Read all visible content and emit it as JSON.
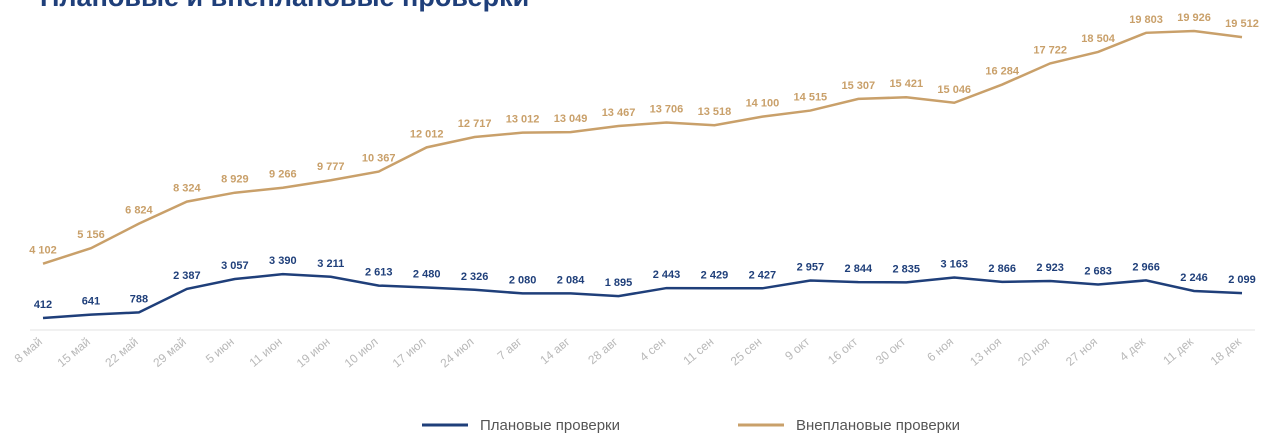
{
  "chart_data": {
    "type": "line",
    "title": "Плановые и внеплановые проверки",
    "categories": [
      "8 май",
      "15 май",
      "22 май",
      "29 май",
      "5 июн",
      "11 июн",
      "19 июн",
      "10 июл",
      "17 июл",
      "24 июл",
      "7 авг",
      "14 авг",
      "28 авг",
      "4 сен",
      "11 сен",
      "25 сен",
      "9 окт",
      "16 окт",
      "30 окт",
      "6 ноя",
      "13 ноя",
      "20 ноя",
      "27 ноя",
      "4 дек",
      "11 дек",
      "18 дек"
    ],
    "series": [
      {
        "name": "Плановые проверки",
        "color": "#1f3f7a",
        "values": [
          412,
          641,
          788,
          2387,
          3057,
          3390,
          3211,
          2613,
          2480,
          2326,
          2080,
          2084,
          1895,
          2443,
          2429,
          2427,
          2957,
          2844,
          2835,
          3163,
          2866,
          2923,
          2683,
          2966,
          2246,
          2099
        ],
        "value_labels": [
          "412",
          "641",
          "788",
          "2 387",
          "3 057",
          "3 390",
          "3 211",
          "2 613",
          "2 480",
          "2 326",
          "2 080",
          "2 084",
          "1 895",
          "2 443",
          "2 429",
          "2 427",
          "2 957",
          "2 844",
          "2 835",
          "3 163",
          "2 866",
          "2 923",
          "2 683",
          "2 966",
          "2 246",
          "2 099"
        ]
      },
      {
        "name": "Внеплановые проверки",
        "color": "#c9a06a",
        "values": [
          4102,
          5156,
          6824,
          8324,
          8929,
          9266,
          9777,
          10367,
          12012,
          12717,
          13012,
          13049,
          13467,
          13706,
          13518,
          14100,
          14515,
          15307,
          15421,
          15046,
          16284,
          17722,
          18504,
          19803,
          19926,
          19512
        ],
        "value_labels": [
          "4 102",
          "5 156",
          "6 824",
          "8 324",
          "8 929",
          "9 266",
          "9 777",
          "10 367",
          "12 012",
          "12 717",
          "13 012",
          "13 049",
          "13 467",
          "13 706",
          "13 518",
          "14 100",
          "14 515",
          "15 307",
          "15 421",
          "15 046",
          "16 284",
          "17 722",
          "18 504",
          "19 803",
          "19 926",
          "19 512"
        ]
      }
    ]
  }
}
